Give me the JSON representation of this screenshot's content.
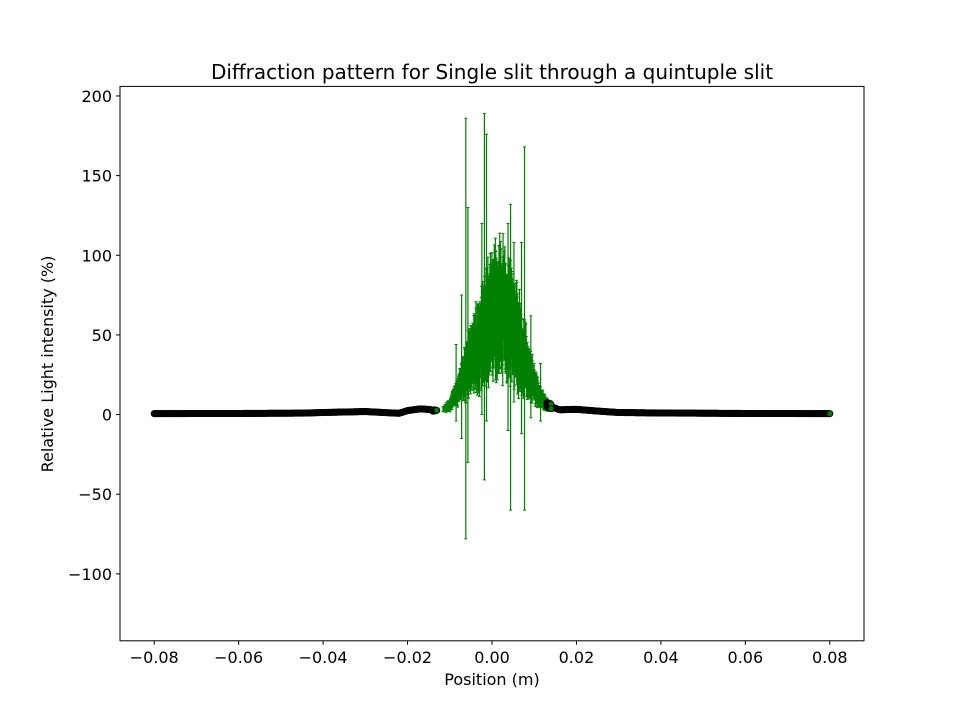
{
  "chart_data": {
    "type": "scatter",
    "title": "Diffraction pattern for Single slit through a quintuple slit",
    "xlabel": "Position (m)",
    "ylabel": "Relative Light intensity (%)",
    "xlim": [
      -0.0881,
      0.0881
    ],
    "ylim": [
      -142,
      206
    ],
    "xticks": [
      -0.08,
      -0.06,
      -0.04,
      -0.02,
      0.0,
      0.02,
      0.04,
      0.06,
      0.08
    ],
    "xtick_labels": [
      "−0.08",
      "−0.06",
      "−0.04",
      "−0.02",
      "0.00",
      "0.02",
      "0.04",
      "0.06",
      "0.08"
    ],
    "yticks": [
      -100,
      -50,
      0,
      50,
      100,
      150,
      200
    ],
    "ytick_labels": [
      "−100",
      "−50",
      "0",
      "50",
      "100",
      "150",
      "200"
    ],
    "grid": false,
    "marker_color": "#008000",
    "marker_edge_color": "#000000",
    "errorbar_color": "#008000",
    "series": [
      {
        "x_range": [
          -0.08,
          0.08
        ],
        "envelope": [
          [
            -0.08,
            0.6
          ],
          [
            -0.06,
            0.7
          ],
          [
            -0.045,
            0.9
          ],
          [
            -0.04,
            1.3
          ],
          [
            -0.035,
            1.6
          ],
          [
            -0.03,
            1.9
          ],
          [
            -0.025,
            1.2
          ],
          [
            -0.022,
            0.8
          ],
          [
            -0.02,
            2.5
          ],
          [
            -0.017,
            3.6
          ],
          [
            -0.015,
            3.2
          ],
          [
            -0.012,
            2.0
          ],
          [
            -0.01,
            6
          ],
          [
            -0.008,
            15
          ],
          [
            -0.006,
            28
          ],
          [
            -0.004,
            40
          ],
          [
            -0.002,
            52
          ],
          [
            0.0,
            62
          ],
          [
            0.002,
            66
          ],
          [
            0.003,
            64
          ],
          [
            0.005,
            55
          ],
          [
            0.007,
            40
          ],
          [
            0.009,
            25
          ],
          [
            0.011,
            12
          ],
          [
            0.013,
            6
          ],
          [
            0.016,
            3.0
          ],
          [
            0.02,
            3.3
          ],
          [
            0.025,
            2.2
          ],
          [
            0.03,
            1.3
          ],
          [
            0.04,
            1.0
          ],
          [
            0.06,
            0.7
          ],
          [
            0.08,
            0.6
          ]
        ],
        "error_peaks": [
          {
            "x": -0.0062,
            "y": 54,
            "err": 132
          },
          {
            "x": -0.0057,
            "y": 50,
            "err": 80
          },
          {
            "x": -0.0072,
            "y": 30,
            "err": 45
          },
          {
            "x": -0.0085,
            "y": 20,
            "err": 24
          },
          {
            "x": -0.0018,
            "y": 74,
            "err": 115
          },
          {
            "x": -0.0013,
            "y": 86,
            "err": 90
          },
          {
            "x": -0.0024,
            "y": 60,
            "err": 60
          },
          {
            "x": 0.0044,
            "y": 36,
            "err": 96
          },
          {
            "x": 0.0038,
            "y": 55,
            "err": 65
          },
          {
            "x": 0.0052,
            "y": 58,
            "err": 50
          },
          {
            "x": 0.0077,
            "y": 54,
            "err": 114
          },
          {
            "x": 0.007,
            "y": 48,
            "err": 60
          },
          {
            "x": 0.0092,
            "y": 30,
            "err": 32
          },
          {
            "x": 0.0115,
            "y": 14,
            "err": 18
          }
        ]
      }
    ]
  }
}
